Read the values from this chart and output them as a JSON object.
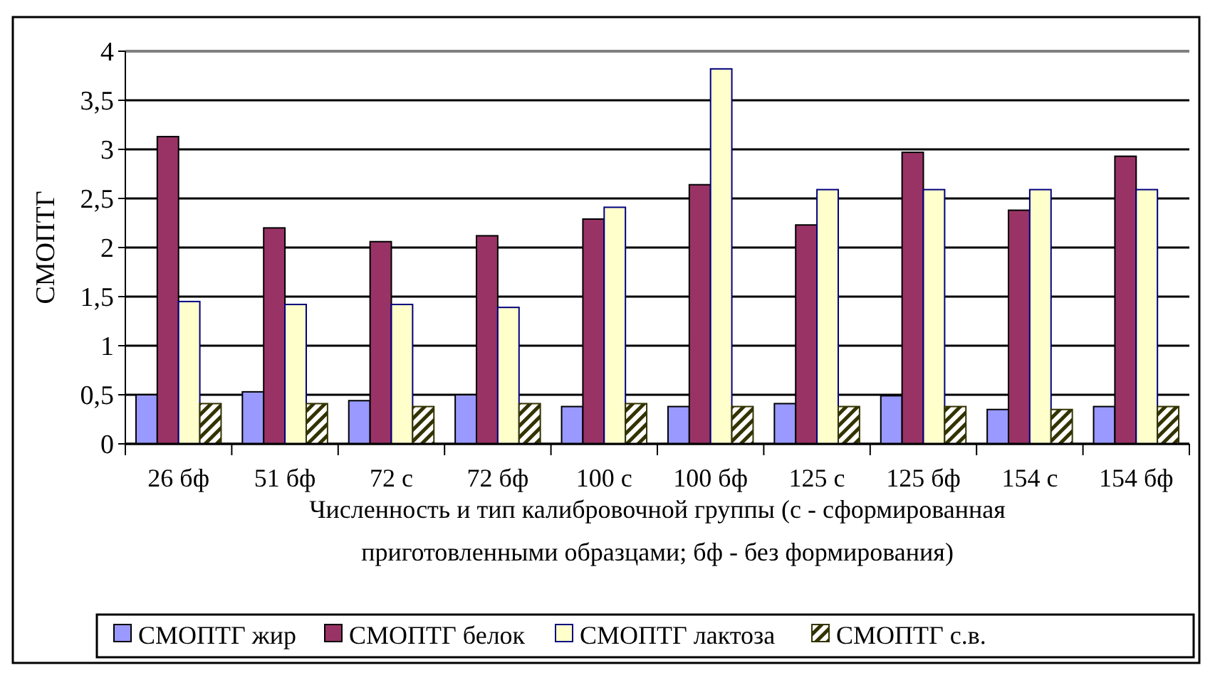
{
  "chart_data": {
    "type": "bar",
    "xlabel": "Численность и тип калибровочной группы (с - сформированная приготовленными образцами; бф - без формирования)",
    "ylabel": "СМОПТГ",
    "categories": [
      "26 бф",
      "51 бф",
      "72 с",
      "72 бф",
      "100 с",
      "100 бф",
      "125 с",
      "125 бф",
      "154 с",
      "154 бф"
    ],
    "series": [
      {
        "name": "СМОПТГ жир",
        "color": "#9999ff",
        "values": [
          0.5,
          0.53,
          0.44,
          0.5,
          0.38,
          0.38,
          0.41,
          0.49,
          0.35,
          0.38
        ]
      },
      {
        "name": "СМОПТГ белок",
        "color": "#993366",
        "values": [
          3.13,
          2.2,
          2.06,
          2.12,
          2.29,
          2.64,
          2.23,
          2.97,
          2.38,
          2.93
        ]
      },
      {
        "name": "СМОПТГ лактоза",
        "color": "#ffffcc",
        "values": [
          1.45,
          1.42,
          1.42,
          1.39,
          2.41,
          3.82,
          2.59,
          2.59,
          2.59,
          2.59
        ]
      },
      {
        "name": "СМОПТГ с.в.",
        "color": "#333300",
        "values": [
          0.41,
          0.41,
          0.38,
          0.41,
          0.41,
          0.38,
          0.38,
          0.38,
          0.35,
          0.38
        ]
      }
    ],
    "ylim": [
      0,
      4
    ],
    "yticks": [
      0,
      {
        "value": 0.5,
        "label": "0,5"
      },
      1,
      {
        "value": 1.5,
        "label": "1,5"
      },
      2,
      {
        "value": 2.5,
        "label": "2,5"
      },
      3,
      {
        "value": 3.5,
        "label": "3,5"
      },
      4
    ],
    "grid": "y",
    "legend": "bottom"
  }
}
